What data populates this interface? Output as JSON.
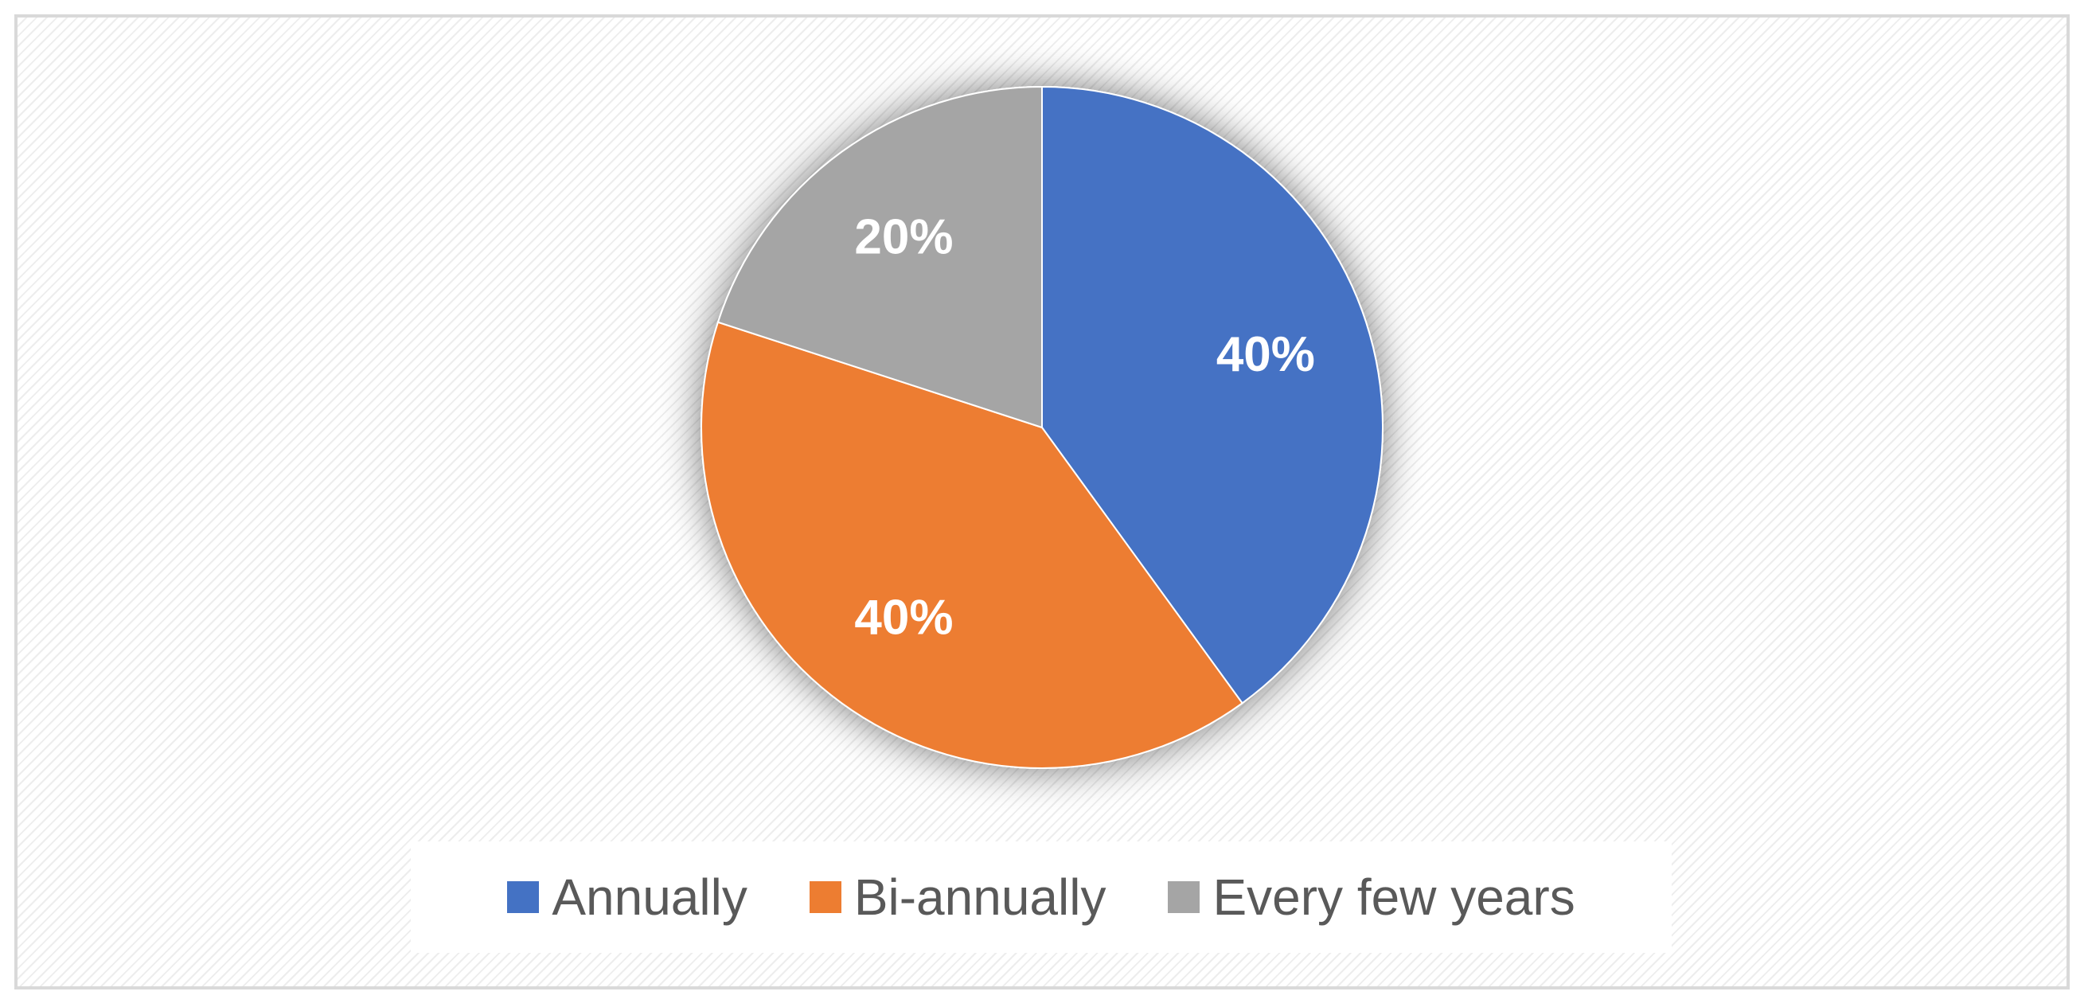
{
  "chart_data": {
    "type": "pie",
    "title": "",
    "categories": [
      "Annually",
      "Bi-annually",
      "Every few years"
    ],
    "values": [
      40,
      40,
      20
    ],
    "data_labels": [
      "40%",
      "40%",
      "20%"
    ],
    "colors": [
      "#4472c4",
      "#ed7d31",
      "#a5a5a5"
    ],
    "start_angle_deg": 0,
    "direction": "clockwise",
    "legend": {
      "position": "bottom",
      "entries": [
        "Annually",
        "Bi-annually",
        "Every few years"
      ]
    }
  }
}
